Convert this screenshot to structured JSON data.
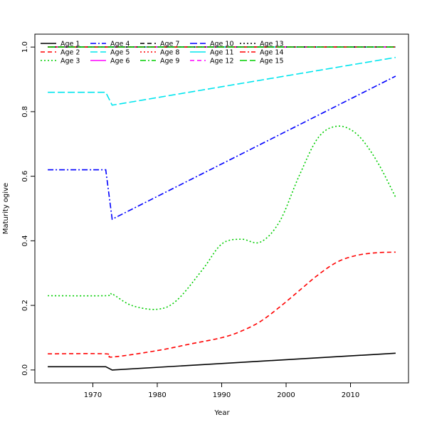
{
  "chart_data": {
    "type": "line",
    "title": "",
    "xlabel": "Year",
    "ylabel": "Maturity ogive",
    "xlim": [
      1961,
      2019
    ],
    "ylim": [
      -0.04,
      1.04
    ],
    "xticks": [
      1970,
      1980,
      1990,
      2000,
      2010
    ],
    "yticks": [
      0.0,
      0.2,
      0.4,
      0.6,
      0.8,
      1.0
    ],
    "xtick_labels": [
      "1970",
      "1980",
      "1990",
      "2000",
      "2010"
    ],
    "ytick_labels": [
      "0.0",
      "0.2",
      "0.4",
      "0.6",
      "0.8",
      "1.0"
    ],
    "legend_position": "top-left",
    "grid": false,
    "series": [
      {
        "name": "Age 1",
        "color": "#000000",
        "dash": "solid",
        "x": [
          1963,
          1972,
          1973,
          2017
        ],
        "y": [
          0.01,
          0.01,
          0.0,
          0.052
        ]
      },
      {
        "name": "Age 2",
        "color": "#ff0000",
        "dash": "dashed",
        "x": [
          1963,
          1972,
          1973,
          1980,
          1985,
          1990,
          1993,
          1996,
          1999,
          2002,
          2005,
          2008,
          2011,
          2014,
          2017
        ],
        "y": [
          0.05,
          0.05,
          0.04,
          0.06,
          0.08,
          0.1,
          0.12,
          0.15,
          0.195,
          0.245,
          0.295,
          0.335,
          0.355,
          0.363,
          0.365
        ]
      },
      {
        "name": "Age 3",
        "color": "#00cd00",
        "dash": "dotted",
        "x": [
          1963,
          1972,
          1973,
          1976,
          1980,
          1983,
          1987,
          1990,
          1993,
          1996,
          1999,
          2002,
          2005,
          2008,
          2011,
          2014,
          2017
        ],
        "y": [
          0.23,
          0.23,
          0.235,
          0.2,
          0.188,
          0.215,
          0.31,
          0.39,
          0.405,
          0.396,
          0.46,
          0.6,
          0.72,
          0.755,
          0.73,
          0.65,
          0.535
        ]
      },
      {
        "name": "Age 4",
        "color": "#0000ff",
        "dash": "dashdot",
        "x": [
          1963,
          1972,
          1973,
          2017
        ],
        "y": [
          0.62,
          0.62,
          0.467,
          0.91
        ]
      },
      {
        "name": "Age 5",
        "color": "#00e5ee",
        "dash": "longdash",
        "x": [
          1963,
          1972,
          1973,
          2017
        ],
        "y": [
          0.86,
          0.86,
          0.82,
          0.968
        ]
      },
      {
        "name": "Age 6",
        "color": "#ff00ff",
        "dash": "solid",
        "x": [
          1963,
          2017
        ],
        "y": [
          1.0,
          1.0
        ]
      },
      {
        "name": "Age 7",
        "color": "#000000",
        "dash": "dashed",
        "x": [
          1963,
          2017
        ],
        "y": [
          1.0,
          1.0
        ]
      },
      {
        "name": "Age 8",
        "color": "#ff0000",
        "dash": "dotted",
        "x": [
          1963,
          2017
        ],
        "y": [
          1.0,
          1.0
        ]
      },
      {
        "name": "Age 9",
        "color": "#00cd00",
        "dash": "dashdot",
        "x": [
          1963,
          2017
        ],
        "y": [
          1.0,
          1.0
        ]
      },
      {
        "name": "Age 10",
        "color": "#0000ff",
        "dash": "longdash",
        "x": [
          1963,
          2017
        ],
        "y": [
          1.0,
          1.0
        ]
      },
      {
        "name": "Age 11",
        "color": "#00e5ee",
        "dash": "solid",
        "x": [
          1963,
          2017
        ],
        "y": [
          1.0,
          1.0
        ]
      },
      {
        "name": "Age 12",
        "color": "#ff00ff",
        "dash": "dashed",
        "x": [
          1963,
          2017
        ],
        "y": [
          1.0,
          1.0
        ]
      },
      {
        "name": "Age 13",
        "color": "#000000",
        "dash": "dotted",
        "x": [
          1963,
          2017
        ],
        "y": [
          1.0,
          1.0
        ]
      },
      {
        "name": "Age 14",
        "color": "#ff0000",
        "dash": "dashdot",
        "x": [
          1963,
          2017
        ],
        "y": [
          1.0,
          1.0
        ]
      },
      {
        "name": "Age 15",
        "color": "#00cd00",
        "dash": "longdash",
        "x": [
          1963,
          2017
        ],
        "y": [
          1.0,
          1.0
        ]
      }
    ]
  }
}
